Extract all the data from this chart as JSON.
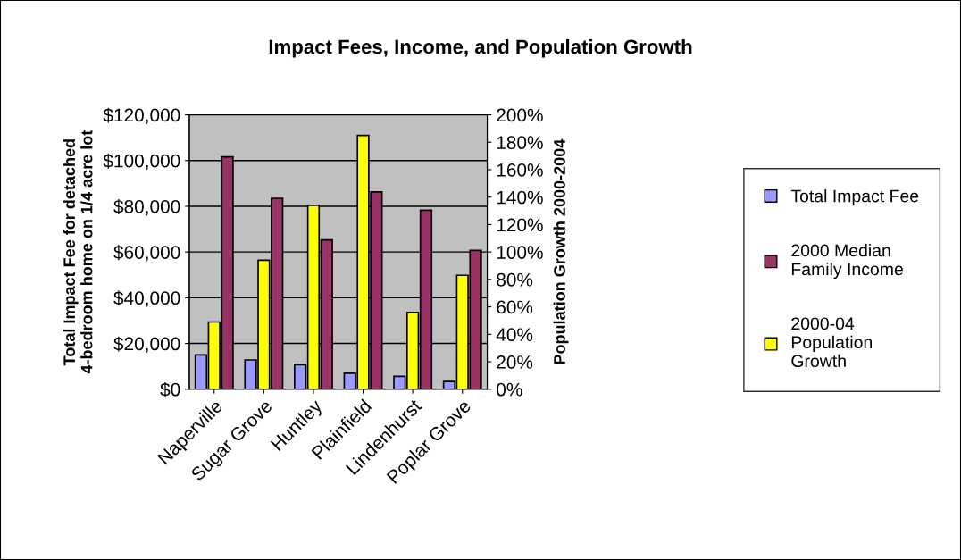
{
  "chart_data": {
    "type": "bar",
    "title": "Impact Fees, Income, and Population Growth",
    "ylabel": "Total Impact Fee for detached 4-bedroom home on 1/4 acre lot",
    "y2label": "Population Growth 2000-2004",
    "categories": [
      "Naperville",
      "Sugar Grove",
      "Huntley",
      "Plainfield",
      "Lindenhurst",
      "Poplar Grove"
    ],
    "series": [
      {
        "name": "Total Impact Fee",
        "color": "#9999ff",
        "values": [
          15000,
          12800,
          10700,
          7000,
          5600,
          3400
        ]
      },
      {
        "name": "2000 Median Family Income",
        "color": "#993366",
        "values": [
          101600,
          83500,
          65300,
          86300,
          78300,
          60700
        ]
      },
      {
        "name": "2000-04 Population Growth",
        "color": "#ffff00",
        "axis": "y2",
        "values": [
          49,
          94,
          134,
          185,
          56,
          83
        ]
      }
    ],
    "ylim": [
      0,
      120000
    ],
    "yticks": [
      {
        "value": 0,
        "label": "$0"
      },
      {
        "value": 20000,
        "label": "$20,000"
      },
      {
        "value": 40000,
        "label": "$40,000"
      },
      {
        "value": 60000,
        "label": "$60,000"
      },
      {
        "value": 80000,
        "label": "$80,000"
      },
      {
        "value": 100000,
        "label": "$100,000"
      },
      {
        "value": 120000,
        "label": "$120,000"
      }
    ],
    "y2lim": [
      0,
      200
    ],
    "y2ticks": [
      {
        "value": 0,
        "label": "0%"
      },
      {
        "value": 20,
        "label": "20%"
      },
      {
        "value": 40,
        "label": "40%"
      },
      {
        "value": 60,
        "label": "60%"
      },
      {
        "value": 80,
        "label": "80%"
      },
      {
        "value": 100,
        "label": "100%"
      },
      {
        "value": 120,
        "label": "120%"
      },
      {
        "value": 140,
        "label": "140%"
      },
      {
        "value": 160,
        "label": "160%"
      },
      {
        "value": 180,
        "label": "180%"
      },
      {
        "value": 200,
        "label": "200%"
      }
    ],
    "grid": "y",
    "legend": "right"
  }
}
